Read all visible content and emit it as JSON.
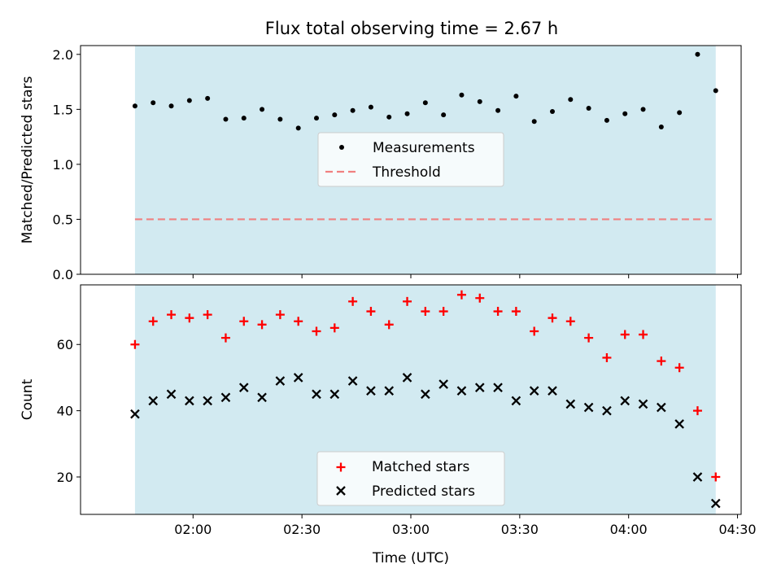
{
  "title": "Flux total observing time = 2.67 h",
  "colors": {
    "span": "#add8e6",
    "measurement": "#000000",
    "threshold": "#f08080",
    "matched": "#ff0000",
    "predicted": "#000000"
  },
  "chart_data": [
    {
      "type": "scatter",
      "panel": "top",
      "ylabel": "Matched/Predicted stars",
      "xlabel": "",
      "ylim": [
        0,
        2.08
      ],
      "yticks": [
        "0.0",
        "0.5",
        "1.0",
        "1.5",
        "2.0"
      ],
      "legend": [
        "Measurements",
        "Threshold"
      ],
      "legend_position": "center",
      "threshold": 0.5,
      "shaded_span": [
        "01:44",
        "04:24"
      ],
      "x": [
        "01:44",
        "01:49",
        "01:54",
        "01:59",
        "02:04",
        "02:09",
        "02:14",
        "02:19",
        "02:24",
        "02:29",
        "02:34",
        "02:39",
        "02:44",
        "02:49",
        "02:54",
        "02:59",
        "03:04",
        "03:09",
        "03:14",
        "03:19",
        "03:24",
        "03:29",
        "03:34",
        "03:39",
        "03:44",
        "03:49",
        "03:54",
        "03:59",
        "04:04",
        "04:09",
        "04:14",
        "04:19",
        "04:24"
      ],
      "series": [
        {
          "name": "Measurements",
          "values": [
            1.53,
            1.56,
            1.53,
            1.58,
            1.6,
            1.41,
            1.42,
            1.5,
            1.41,
            1.33,
            1.42,
            1.45,
            1.49,
            1.52,
            1.43,
            1.46,
            1.56,
            1.45,
            1.63,
            1.57,
            1.49,
            1.62,
            1.39,
            1.48,
            1.59,
            1.51,
            1.4,
            1.46,
            1.5,
            1.34,
            1.47,
            2.0,
            1.67
          ]
        }
      ]
    },
    {
      "type": "scatter",
      "panel": "bottom",
      "ylabel": "Count",
      "xlabel": "Time (UTC)",
      "ylim": [
        8.7,
        78
      ],
      "yticks": [
        "20",
        "40",
        "60"
      ],
      "xticks": [
        "02:00",
        "02:30",
        "03:00",
        "03:30",
        "04:00",
        "04:30"
      ],
      "legend": [
        "Matched stars",
        "Predicted stars"
      ],
      "legend_position": "lower center",
      "shaded_span": [
        "01:44",
        "04:24"
      ],
      "x": [
        "01:44",
        "01:49",
        "01:54",
        "01:59",
        "02:04",
        "02:09",
        "02:14",
        "02:19",
        "02:24",
        "02:29",
        "02:34",
        "02:39",
        "02:44",
        "02:49",
        "02:54",
        "02:59",
        "03:04",
        "03:09",
        "03:14",
        "03:19",
        "03:24",
        "03:29",
        "03:34",
        "03:39",
        "03:44",
        "03:49",
        "03:54",
        "03:59",
        "04:04",
        "04:09",
        "04:14",
        "04:19",
        "04:24"
      ],
      "series": [
        {
          "name": "Matched stars",
          "values": [
            60,
            67,
            69,
            68,
            69,
            62,
            67,
            66,
            69,
            67,
            64,
            65,
            73,
            70,
            66,
            73,
            70,
            70,
            75,
            74,
            70,
            70,
            64,
            68,
            67,
            62,
            56,
            63,
            63,
            55,
            53,
            40,
            20
          ]
        },
        {
          "name": "Predicted stars",
          "values": [
            39,
            43,
            45,
            43,
            43,
            44,
            47,
            44,
            49,
            50,
            45,
            45,
            49,
            46,
            46,
            50,
            45,
            48,
            46,
            47,
            47,
            43,
            46,
            46,
            42,
            41,
            40,
            43,
            42,
            41,
            36,
            20,
            12
          ]
        }
      ]
    }
  ]
}
